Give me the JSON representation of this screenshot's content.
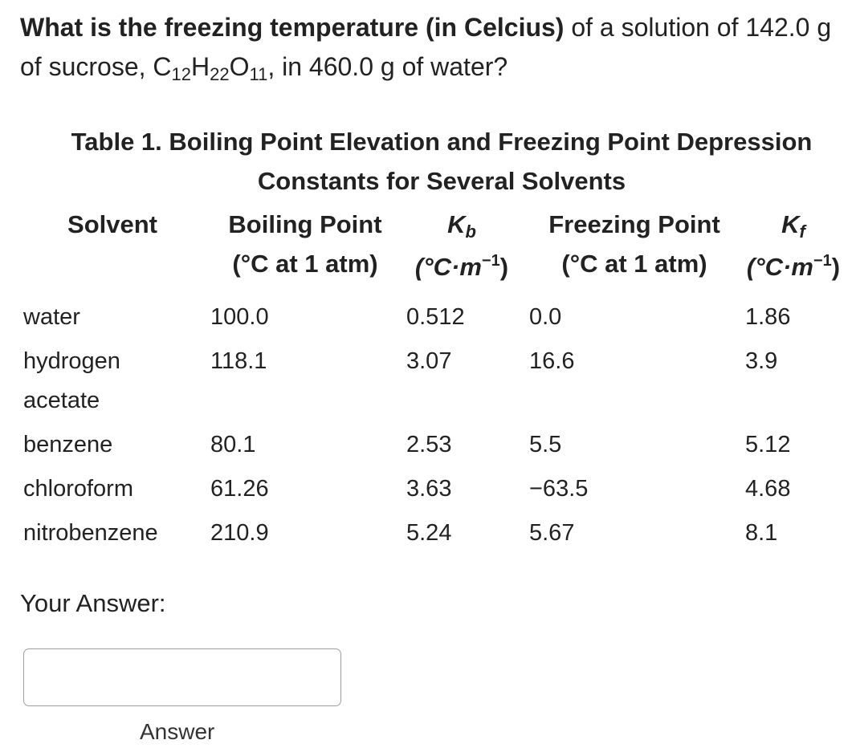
{
  "question": {
    "bold_text": "What is the freezing temperature (in Celcius)",
    "text_part1": " of a solution of 142.0 g of sucrose, C",
    "sub1": "12",
    "text_h": "H",
    "sub2": "22",
    "text_o": "O",
    "sub3": "11",
    "text_part2": ", in 460.0 g of water?"
  },
  "table": {
    "caption": "Table 1. Boiling Point Elevation and Freezing Point Depression Constants for Several Solvents",
    "headers": {
      "solvent": "Solvent",
      "boiling_point": "Boiling Point",
      "boiling_unit": "(°C at 1 atm)",
      "kb_symbol": "K",
      "kb_sub": "b",
      "kb_unit_base": "(°C·m",
      "kb_unit_sup": "−1",
      "kb_unit_close": ")",
      "freezing_point": "Freezing Point",
      "freezing_unit": "(°C at 1 atm)",
      "kf_symbol": "K",
      "kf_sub": "f",
      "kf_unit_base": "(°C·m",
      "kf_unit_sup": "−1",
      "kf_unit_close": ")"
    },
    "rows": [
      {
        "solvent": "water",
        "solvent_line2": "",
        "bp": "100.0",
        "kb": "0.512",
        "fp": "0.0",
        "kf": "1.86"
      },
      {
        "solvent": "hydrogen",
        "solvent_line2": "acetate",
        "bp": "118.1",
        "kb": "3.07",
        "fp": "16.6",
        "kf": "3.9"
      },
      {
        "solvent": "benzene",
        "solvent_line2": "",
        "bp": "80.1",
        "kb": "2.53",
        "fp": "5.5",
        "kf": "5.12"
      },
      {
        "solvent": "chloroform",
        "solvent_line2": "",
        "bp": "61.26",
        "kb": "3.63",
        "fp": "−63.5",
        "kf": "4.68"
      },
      {
        "solvent": "nitrobenzene",
        "solvent_line2": "",
        "bp": "210.9",
        "kb": "5.24",
        "fp": "5.67",
        "kf": "8.1"
      }
    ]
  },
  "answer": {
    "label": "Your Answer:",
    "value": "",
    "placeholder": "",
    "caption": "Answer"
  }
}
